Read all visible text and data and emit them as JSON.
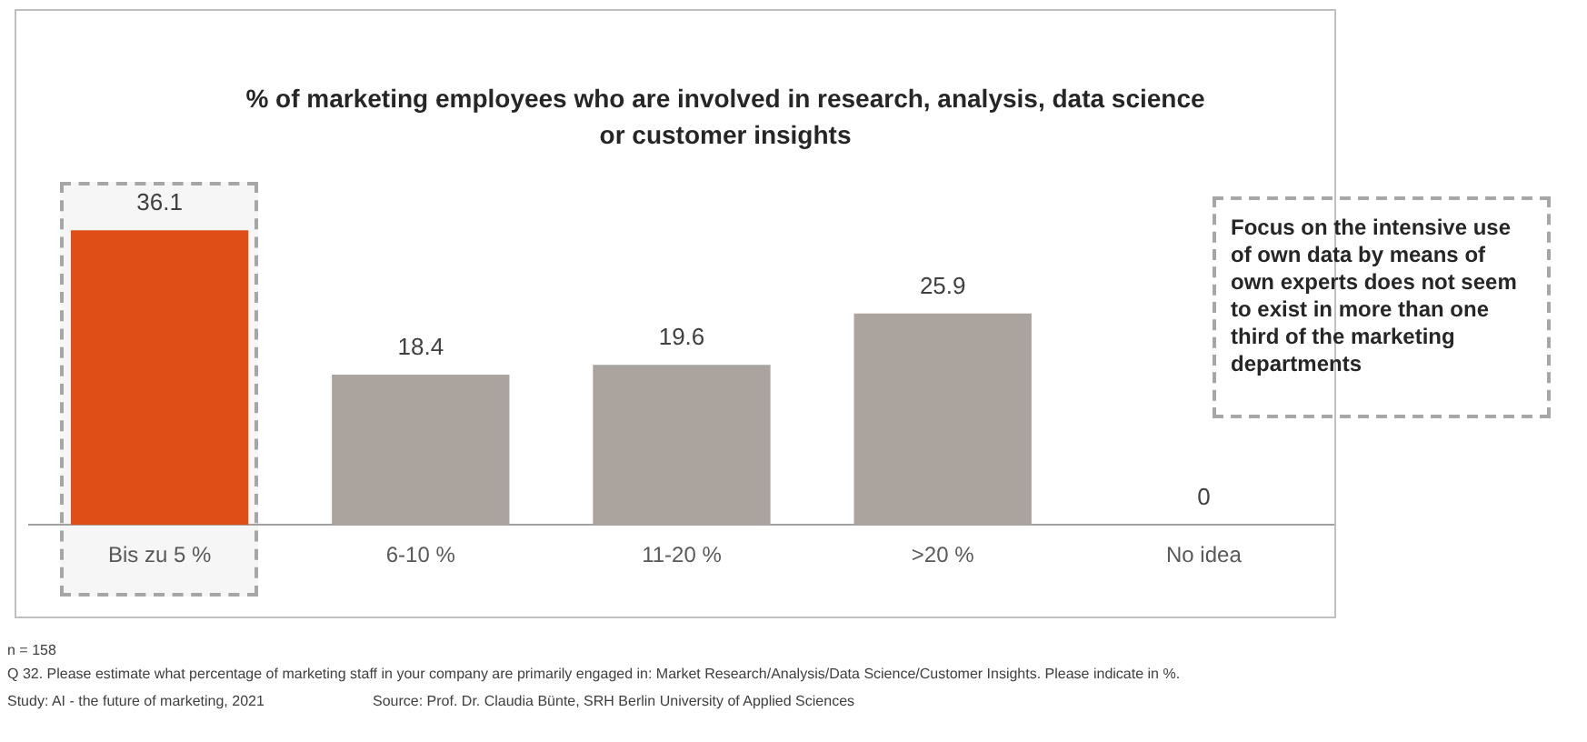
{
  "chart_data": {
    "type": "bar",
    "title": "% of marketing employees who are involved in research, analysis, data science or customer insights",
    "categories": [
      "Bis zu 5 %",
      "6-10 %",
      "11-20 %",
      ">20 %",
      "No idea"
    ],
    "values": [
      36.1,
      18.4,
      19.6,
      25.9,
      0
    ],
    "colors": [
      "#e04e17",
      "#aba39e",
      "#aba39e",
      "#aba39e",
      "#aba39e"
    ],
    "data_labels": true,
    "grid": false,
    "legend": false,
    "annotations": [
      "Focus on the intensive use of own data by means of own experts does not seem to exist in more than one third of the marketing departments",
      "n = 158",
      "Q 32. Please estimate what percentage of marketing staff in your company are primarily engaged in: Market Research/Analysis/Data Science/Customer Insights. Please indicate in %.",
      "Study: AI - the future of marketing, 2021",
      "Source: Prof. Dr. Claudia Bünte, SRH Berlin University of Applied Sciences"
    ]
  }
}
